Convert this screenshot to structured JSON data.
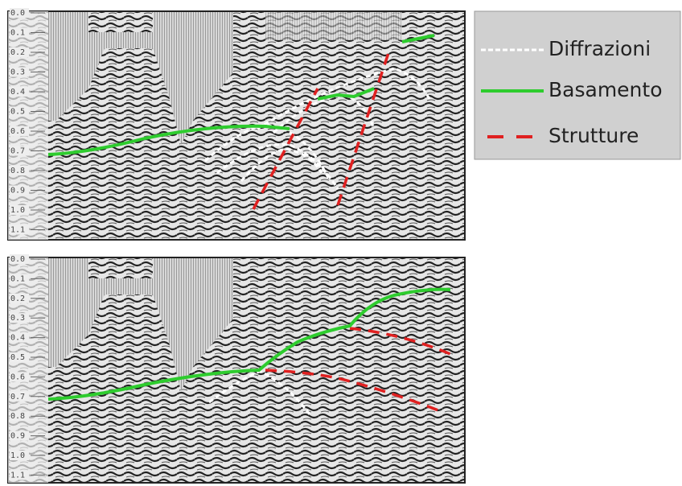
{
  "time_ticks": [
    "0.0",
    "0.1",
    "0.2",
    "0.3",
    "0.4",
    "0.5",
    "0.6",
    "0.7",
    "0.8",
    "0.9",
    "1.0",
    "1.1"
  ],
  "legend": {
    "entries": [
      "Diffrazioni",
      "Basamento",
      "Strutture"
    ]
  }
}
